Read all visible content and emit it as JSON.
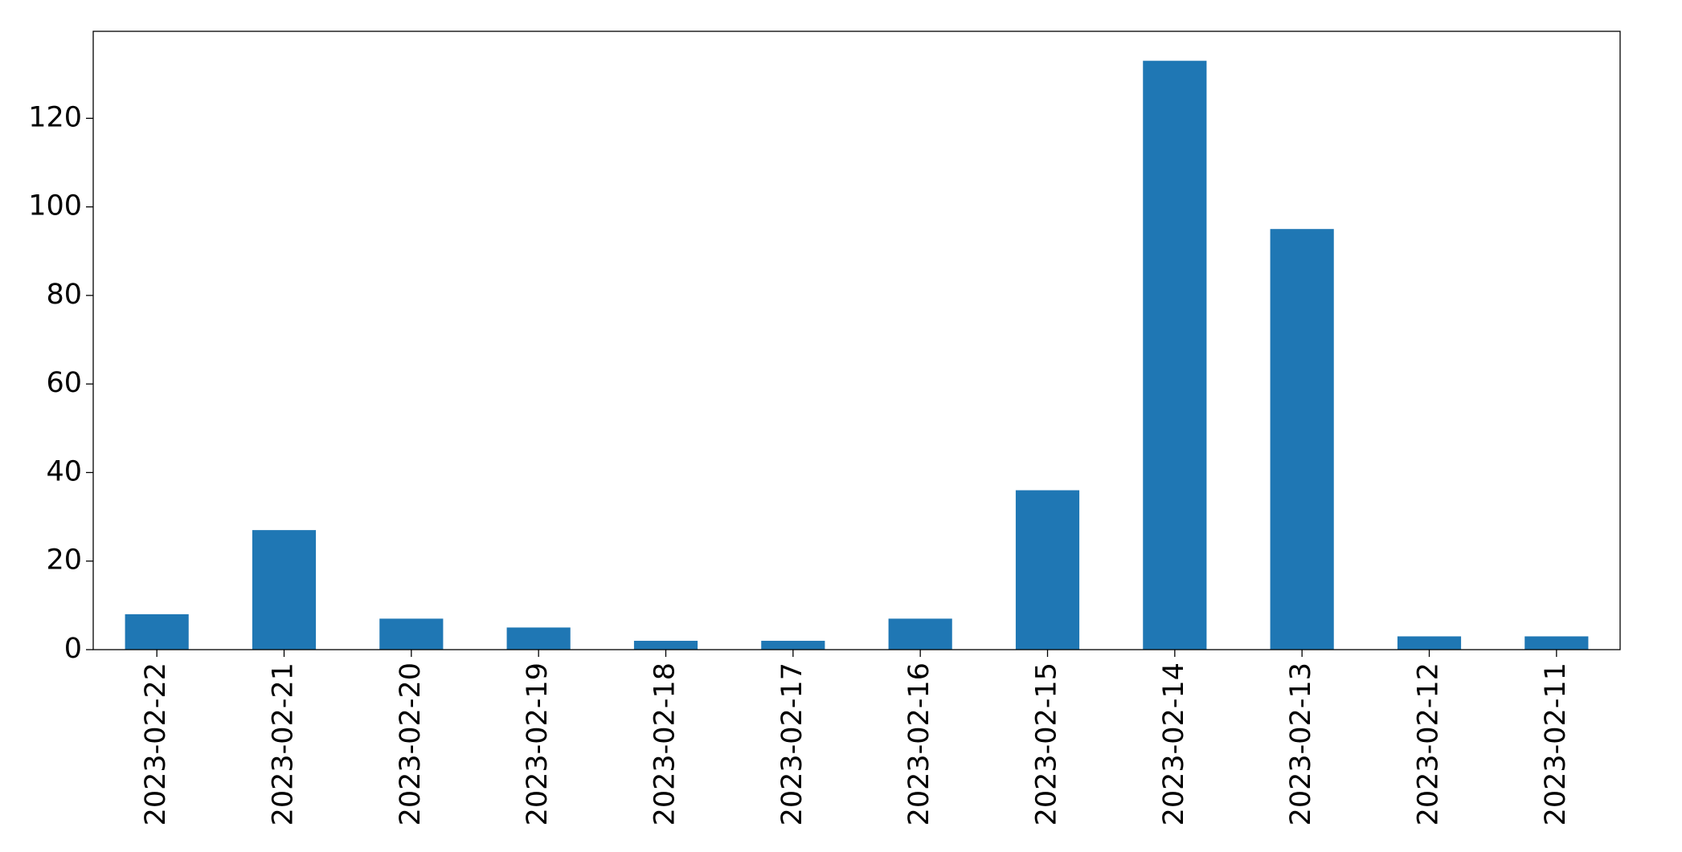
{
  "chart_data": {
    "type": "bar",
    "categories": [
      "2023-02-22",
      "2023-02-21",
      "2023-02-20",
      "2023-02-19",
      "2023-02-18",
      "2023-02-17",
      "2023-02-16",
      "2023-02-15",
      "2023-02-14",
      "2023-02-13",
      "2023-02-12",
      "2023-02-11"
    ],
    "values": [
      8,
      27,
      7,
      5,
      2,
      2,
      7,
      36,
      133,
      95,
      3,
      3
    ],
    "color": "#1f77b4",
    "ylim": [
      0,
      139.65
    ],
    "yticks": [
      0,
      20,
      40,
      60,
      80,
      100,
      120
    ],
    "grid": false
  }
}
